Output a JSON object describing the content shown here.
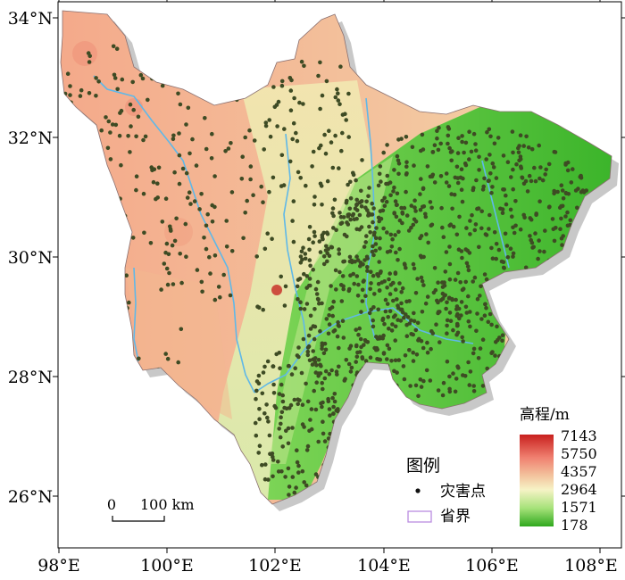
{
  "map": {
    "x_labels": [
      "98°E",
      "100°E",
      "102°E",
      "104°E",
      "106°E",
      "108°E"
    ],
    "y_labels": [
      "34°N",
      "32°N",
      "30°N",
      "28°N",
      "26°N"
    ]
  },
  "legend": {
    "title": "图例",
    "points_label": "灾害点",
    "boundary_label": "省界"
  },
  "elevation_bar": {
    "title": "高程/m",
    "ticks": [
      "7143",
      "5750",
      "4357",
      "2964",
      "1571",
      "178"
    ],
    "colors": {
      "high": "#c8201e",
      "mid_high": "#f3a58a",
      "mid": "#f6f3c6",
      "mid_low": "#a7e27a",
      "low": "#2fa81e"
    }
  },
  "scale_bar": {
    "zero": "0",
    "label": "100 km"
  },
  "colors": {
    "point": "#3e4b24",
    "boundary": "#b98ce0",
    "river": "#5fb8e8",
    "frame": "#000000"
  }
}
